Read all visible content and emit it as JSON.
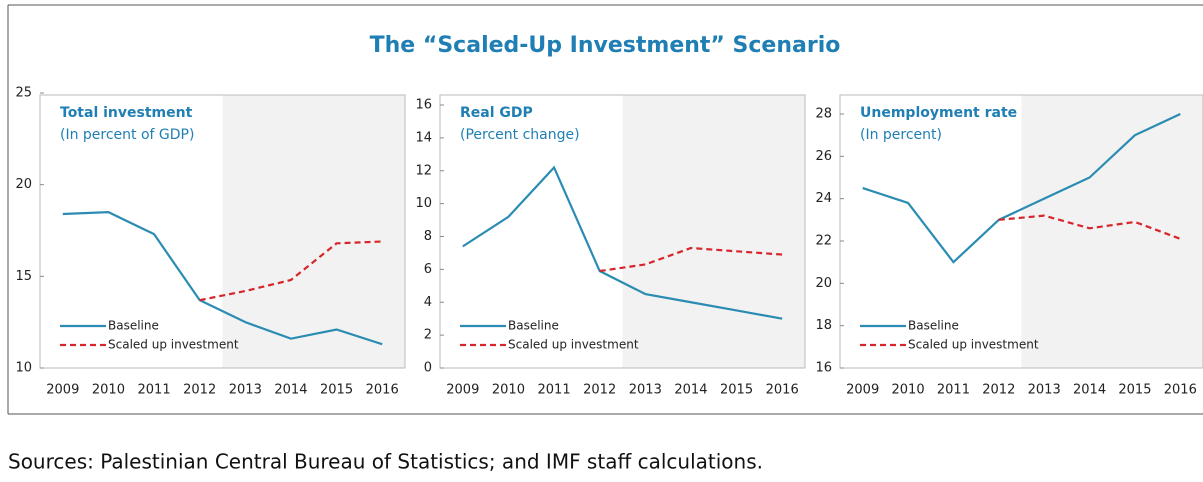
{
  "title": "The “Scaled-Up Investment” Scenario",
  "source": "Sources: Palestinian Central Bureau of Statistics; and IMF staff calculations.",
  "chart_data": [
    {
      "type": "line",
      "title": "Total investment",
      "subtitle": "(In percent of GDP)",
      "categories": [
        "2009",
        "2010",
        "2011",
        "2012",
        "2013",
        "2014",
        "2015",
        "2016"
      ],
      "series": [
        {
          "name": "Baseline",
          "color": "#2b8cb3",
          "dash": false,
          "values": [
            18.4,
            18.5,
            17.3,
            13.7,
            12.5,
            11.6,
            12.1,
            11.3
          ]
        },
        {
          "name": "Scaled up investment",
          "color": "#d7262b",
          "dash": true,
          "values": [
            null,
            null,
            null,
            13.7,
            14.2,
            14.8,
            16.8,
            16.9
          ]
        }
      ],
      "ylim": [
        10,
        25
      ],
      "yticks": [
        10,
        15,
        20,
        25
      ],
      "shaded_from": "2013"
    },
    {
      "type": "line",
      "title": "Real GDP",
      "subtitle": "(Percent change)",
      "categories": [
        "2009",
        "2010",
        "2011",
        "2012",
        "2013",
        "2014",
        "2015",
        "2016"
      ],
      "series": [
        {
          "name": "Baseline",
          "color": "#2b8cb3",
          "dash": false,
          "values": [
            7.4,
            9.2,
            12.2,
            5.9,
            4.5,
            4.0,
            3.5,
            3.0
          ]
        },
        {
          "name": "Scaled up investment",
          "color": "#d7262b",
          "dash": true,
          "values": [
            null,
            null,
            null,
            5.9,
            6.3,
            7.3,
            7.1,
            6.9
          ]
        }
      ],
      "ylim": [
        0,
        16
      ],
      "yticks": [
        0,
        2,
        4,
        6,
        8,
        10,
        12,
        14,
        16
      ],
      "shaded_from": "2013"
    },
    {
      "type": "line",
      "title": "Unemployment rate",
      "subtitle": "(In percent)",
      "categories": [
        "2009",
        "2010",
        "2011",
        "2012",
        "2013",
        "2014",
        "2015",
        "2016"
      ],
      "series": [
        {
          "name": "Baseline",
          "color": "#2b8cb3",
          "dash": false,
          "values": [
            24.5,
            23.8,
            21.0,
            23.0,
            24.0,
            25.0,
            27.0,
            28.0
          ]
        },
        {
          "name": "Scaled up investment",
          "color": "#d7262b",
          "dash": true,
          "values": [
            null,
            null,
            null,
            23.0,
            23.2,
            22.6,
            22.9,
            22.1
          ]
        }
      ],
      "ylim": [
        16,
        28
      ],
      "yticks": [
        16,
        18,
        20,
        22,
        24,
        26,
        28
      ],
      "shaded_from": "2013"
    }
  ]
}
